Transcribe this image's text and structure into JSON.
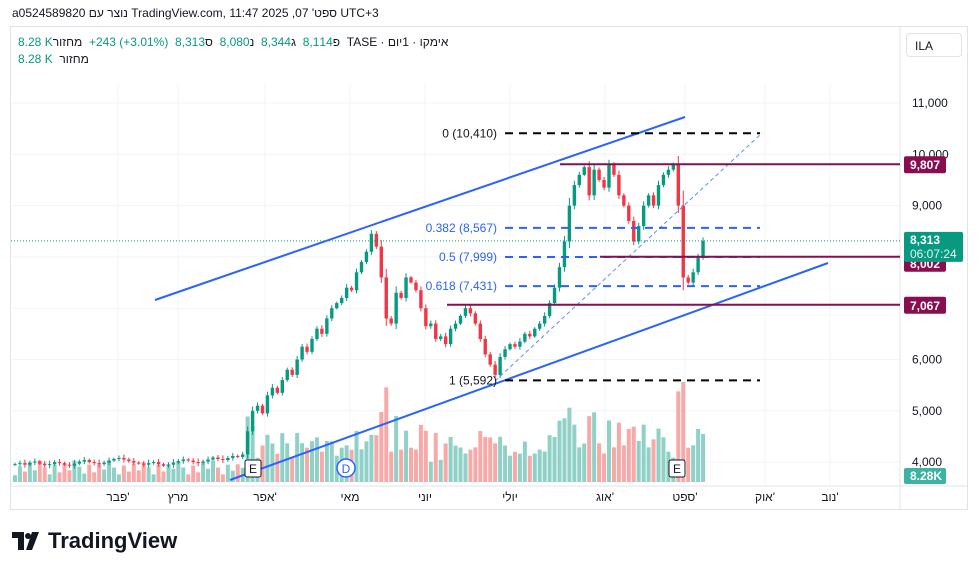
{
  "header": {
    "caption": "a0524589820 נוצר עם TradingView.com, 11:47 2025 ,07 'ספט UTC+3"
  },
  "legend": {
    "symbol": "אימקו · 1יום · TASE",
    "open_label": "פ",
    "open": "8,114",
    "high_label": "ג",
    "high": "8,344",
    "low_label": "נ",
    "low": "8,080",
    "close_label": "ס",
    "close": "8,313",
    "change": "+243 (+3.01%)",
    "volume_label": "מחזור",
    "volume": "8.28 K"
  },
  "legend2": {
    "label": "מחזור",
    "value": "8.28 K"
  },
  "currency_button": "ILA",
  "logo": "TradingView",
  "colors": {
    "up": "#089981",
    "down": "#f23645",
    "maroon": "#880e4f",
    "blue": "#2962ff",
    "fib": "#2962ff"
  },
  "chart_data": {
    "type": "candlestick",
    "y_ticks": [
      "11,000",
      "10,000",
      "9,000",
      "6,000",
      "5,000",
      "4,000"
    ],
    "y_tick_values": [
      11000,
      10000,
      9000,
      6000,
      5000,
      4000
    ],
    "ylim": [
      3900,
      11500
    ],
    "x_ticks": [
      "פבר'",
      "מרץ",
      "אפר'",
      "מאי",
      "יוני",
      "יולי",
      "אוג'",
      "ספט'",
      "אוק'",
      "נוב'"
    ],
    "closes": [
      3960,
      3980,
      3950,
      3990,
      4010,
      3970,
      3940,
      3960,
      4000,
      3980,
      3950,
      3930,
      3970,
      4010,
      4040,
      4000,
      3980,
      3960,
      3990,
      4030,
      4060,
      4080,
      4050,
      4020,
      3990,
      3970,
      3950,
      3980,
      4000,
      3960,
      3930,
      3950,
      3990,
      4020,
      4050,
      4030,
      4000,
      3980,
      4010,
      4050,
      4090,
      4060,
      4040,
      4080,
      4120,
      4100,
      4150,
      4600,
      5000,
      5100,
      4950,
      5300,
      5450,
      5350,
      5600,
      5800,
      5700,
      6000,
      6250,
      6150,
      6400,
      6600,
      6500,
      6800,
      7000,
      7100,
      7200,
      7400,
      7350,
      7700,
      7900,
      8100,
      8450,
      8200,
      7600,
      6800,
      6700,
      7300,
      7200,
      7600,
      7500,
      7350,
      7000,
      6650,
      6700,
      6400,
      6450,
      6300,
      6600,
      6700,
      6850,
      7000,
      6900,
      6700,
      6400,
      6100,
      5900,
      5700,
      6050,
      6200,
      6300,
      6250,
      6350,
      6500,
      6450,
      6600,
      6700,
      6850,
      7100,
      7400,
      7800,
      8300,
      9000,
      9400,
      9600,
      9750,
      9200,
      9700,
      9500,
      9350,
      9800,
      9600,
      9200,
      9000,
      8700,
      8300,
      8600,
      9000,
      9200,
      9000,
      9400,
      9600,
      9700,
      9800,
      9000,
      7600,
      7500,
      7700,
      8000,
      8313
    ],
    "fib_levels": [
      {
        "label": "0 (10,410)",
        "value": 10410
      },
      {
        "label": "0.382 (8,567)",
        "value": 8567
      },
      {
        "label": "0.5 (7,999)",
        "value": 7999
      },
      {
        "label": "0.618 (7,431)",
        "value": 7431
      },
      {
        "label": "1 (5,592)",
        "value": 5592
      }
    ],
    "horizontal_levels": [
      {
        "label": "9,807",
        "value": 9807
      },
      {
        "label": "8,002",
        "value": 8002
      },
      {
        "label": "7,067",
        "value": 7067
      }
    ],
    "last_price": {
      "label": "8,313",
      "value": 8313,
      "countdown": "06:07:24"
    },
    "volume_badge": "8.28K",
    "events": [
      {
        "label": "E"
      },
      {
        "label": "D"
      },
      {
        "label": "E"
      }
    ]
  }
}
